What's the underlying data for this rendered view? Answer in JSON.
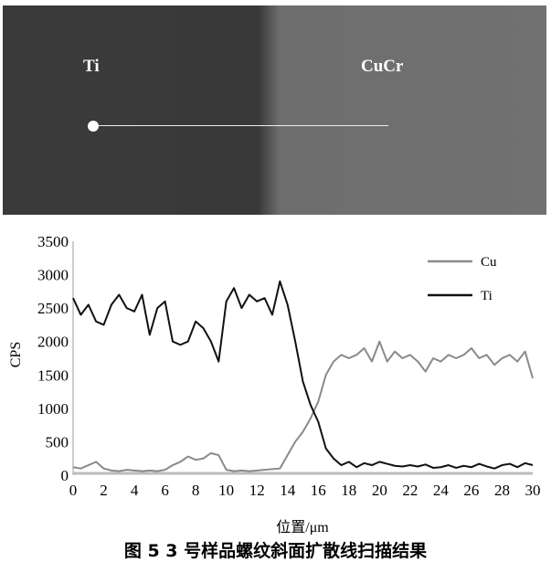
{
  "sem_image": {
    "labels": [
      "Ti",
      "CuCr"
    ],
    "scan_line": "white line scan path with start dot"
  },
  "caption": "图 5   3 号样品螺纹斜面扩散线扫描结果",
  "chart_data": {
    "type": "line",
    "title": "",
    "xlabel": "位置/μm",
    "ylabel": "CPS",
    "xlim": [
      0,
      30
    ],
    "ylim": [
      0,
      3500
    ],
    "xticks": [
      0,
      2,
      4,
      6,
      8,
      10,
      12,
      14,
      16,
      18,
      20,
      22,
      24,
      26,
      28,
      30
    ],
    "yticks": [
      0,
      500,
      1000,
      1500,
      2000,
      2500,
      3000,
      3500
    ],
    "grid": false,
    "legend": "top-right",
    "x": [
      0,
      0.5,
      1,
      1.5,
      2,
      2.5,
      3,
      3.5,
      4,
      4.5,
      5,
      5.5,
      6,
      6.5,
      7,
      7.5,
      8,
      8.5,
      9,
      9.5,
      10,
      10.5,
      11,
      11.5,
      12,
      12.5,
      13,
      13.5,
      14,
      14.5,
      15,
      15.5,
      16,
      16.5,
      17,
      17.5,
      18,
      18.5,
      19,
      19.5,
      20,
      20.5,
      21,
      21.5,
      22,
      22.5,
      23,
      23.5,
      24,
      24.5,
      25,
      25.5,
      26,
      26.5,
      27,
      27.5,
      28,
      28.5,
      29,
      29.5,
      30
    ],
    "series": [
      {
        "name": "Cu",
        "color": "#8a8a8a",
        "values": [
          120,
          100,
          150,
          200,
          100,
          70,
          60,
          80,
          70,
          60,
          70,
          60,
          80,
          150,
          200,
          280,
          230,
          250,
          330,
          300,
          80,
          60,
          70,
          60,
          70,
          80,
          90,
          100,
          300,
          500,
          650,
          850,
          1100,
          1500,
          1700,
          1800,
          1750,
          1800,
          1900,
          1700,
          2000,
          1700,
          1850,
          1750,
          1800,
          1700,
          1550,
          1750,
          1700,
          1800,
          1750,
          1800,
          1900,
          1750,
          1800,
          1650,
          1750,
          1800,
          1700,
          1850,
          1450
        ]
      },
      {
        "name": "Ti",
        "color": "#111111",
        "values": [
          2650,
          2400,
          2550,
          2300,
          2250,
          2550,
          2700,
          2500,
          2450,
          2700,
          2100,
          2500,
          2600,
          2000,
          1950,
          2000,
          2300,
          2200,
          2000,
          1700,
          2600,
          2800,
          2500,
          2700,
          2600,
          2650,
          2400,
          2900,
          2550,
          2000,
          1400,
          1050,
          800,
          400,
          250,
          150,
          200,
          120,
          180,
          150,
          200,
          170,
          140,
          130,
          150,
          130,
          160,
          110,
          120,
          150,
          110,
          140,
          120,
          170,
          130,
          100,
          150,
          170,
          120,
          180,
          150
        ]
      }
    ]
  }
}
